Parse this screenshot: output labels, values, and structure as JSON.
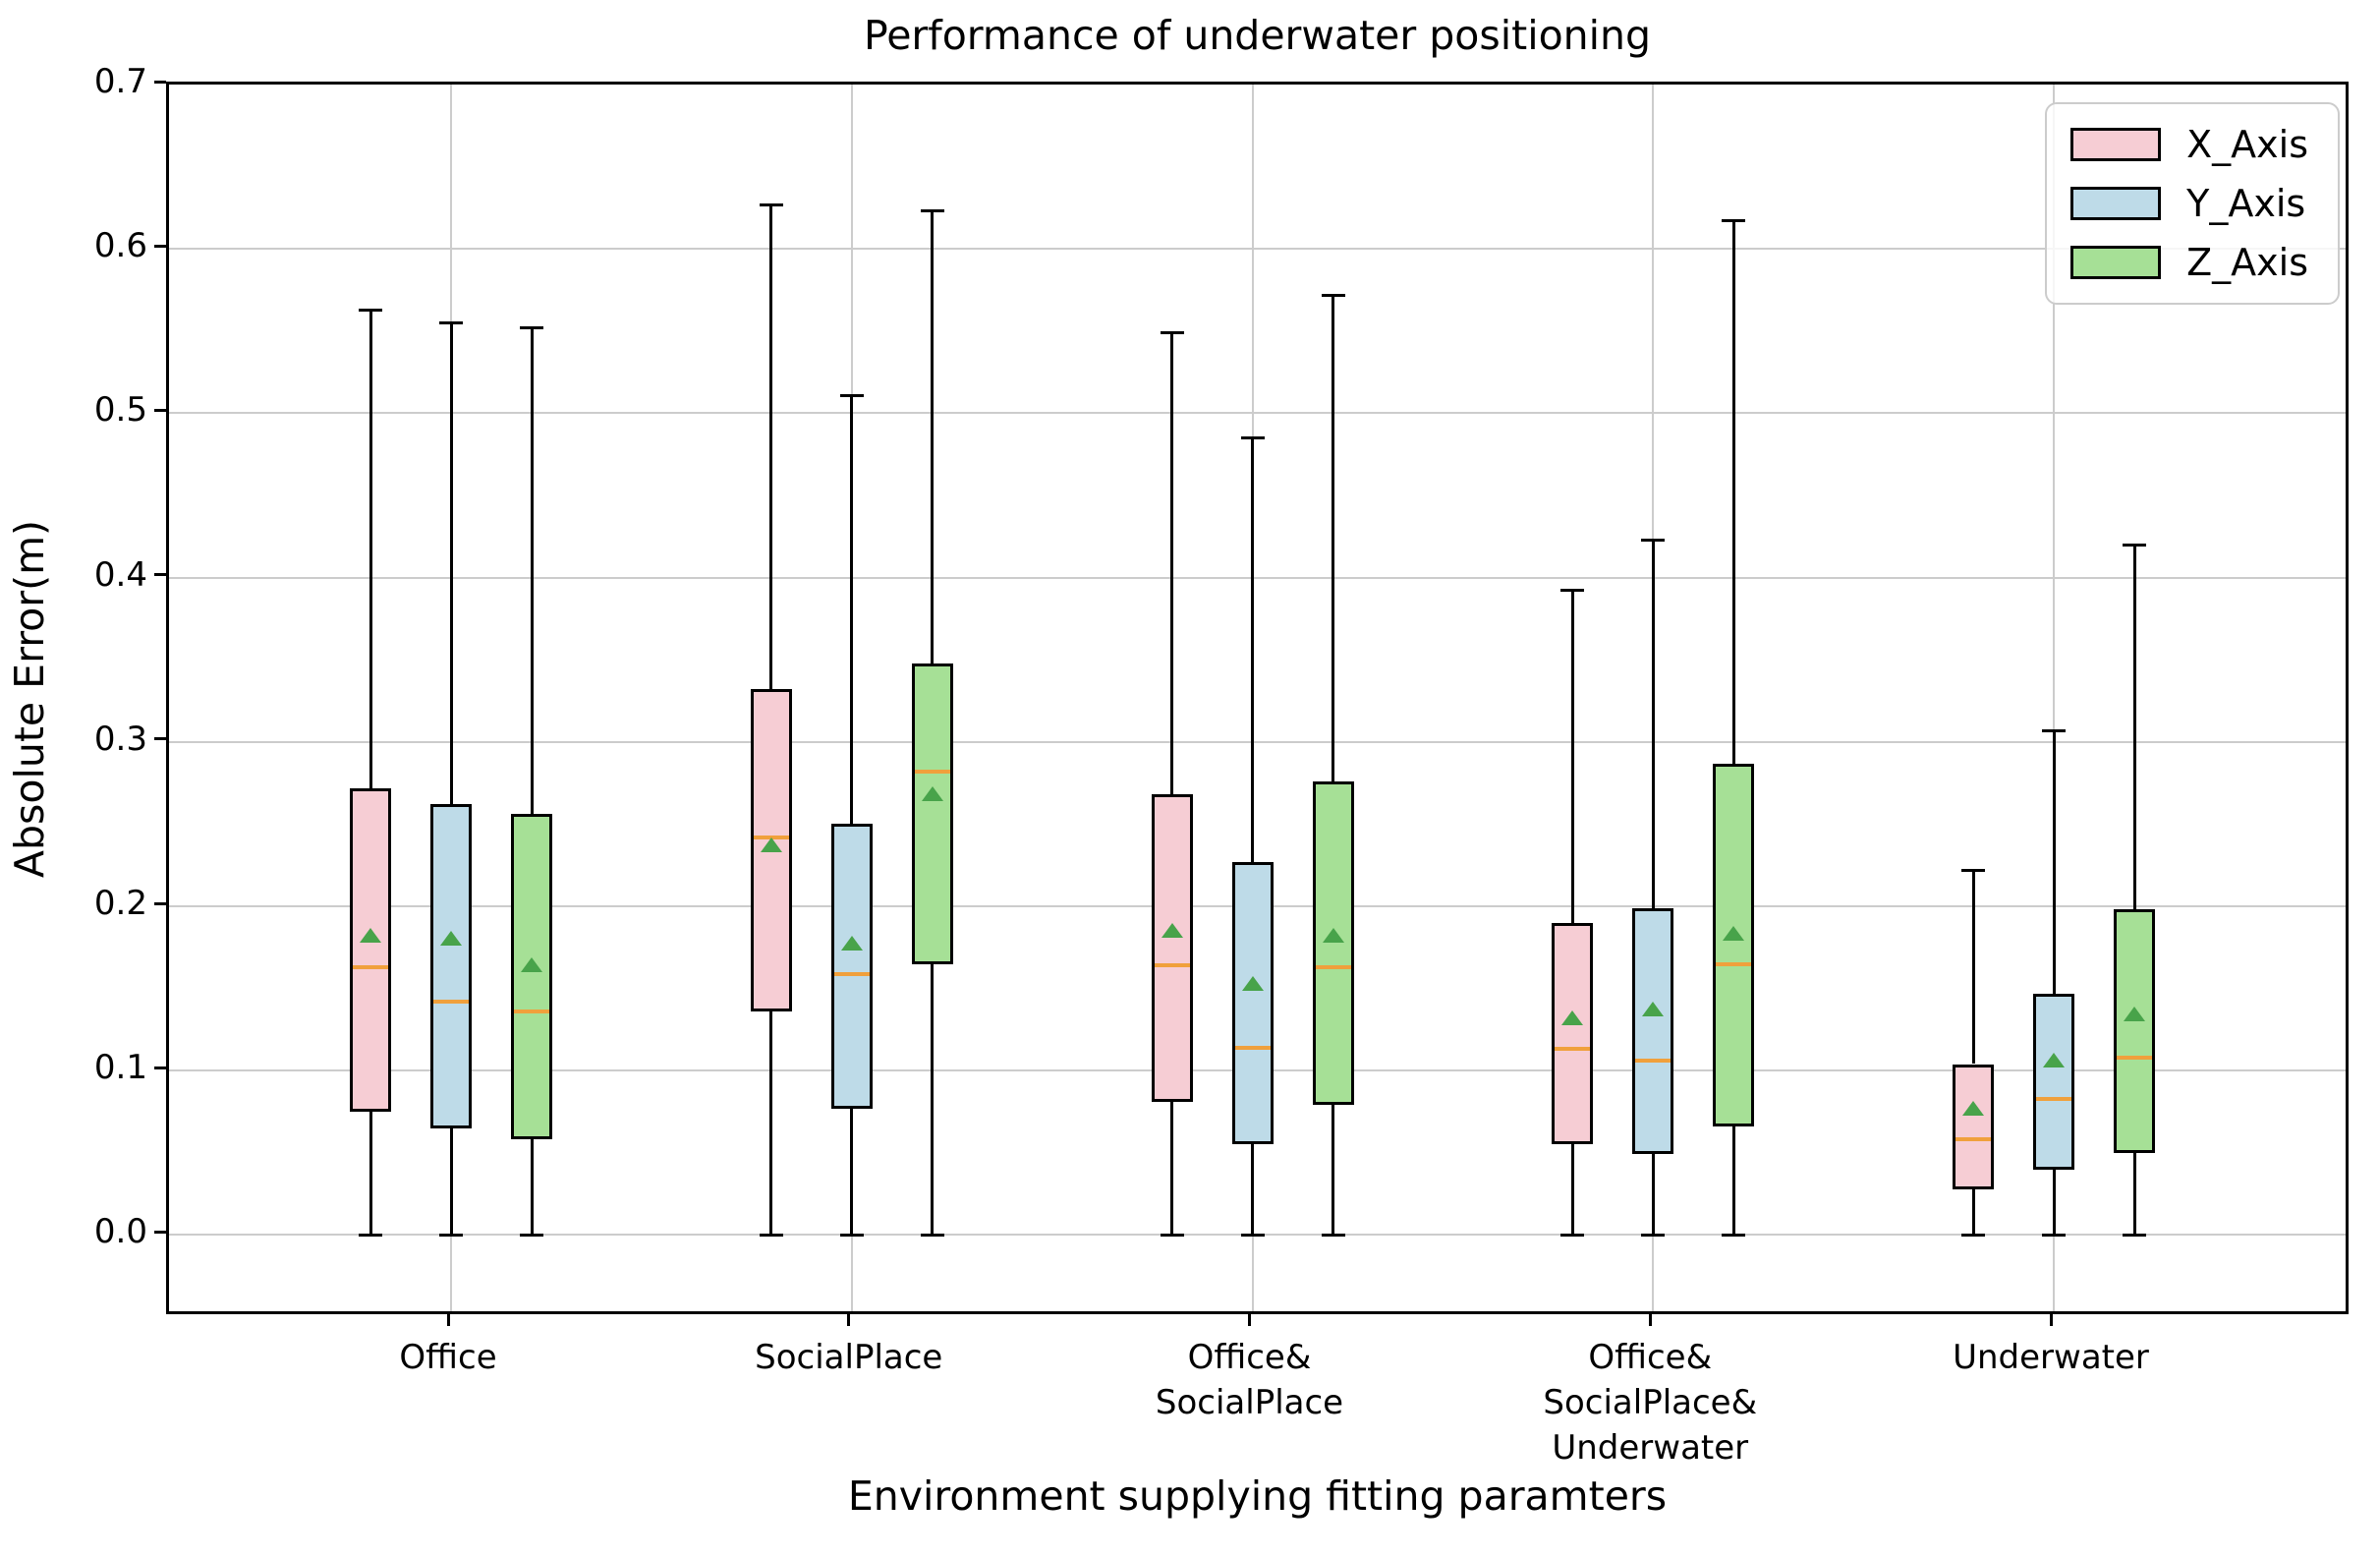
{
  "chart_data": {
    "type": "boxplot",
    "title": "Performance of underwater positioning",
    "xlabel": "Environment supplying fitting paramters",
    "ylabel": "Absolute Error(m)",
    "ylim": [
      -0.05,
      0.7
    ],
    "yticks": [
      0.0,
      0.1,
      0.2,
      0.3,
      0.4,
      0.5,
      0.6,
      0.7
    ],
    "ytick_labels": [
      "0.0",
      "0.1",
      "0.2",
      "0.3",
      "0.4",
      "0.5",
      "0.6",
      "0.7"
    ],
    "grid": true,
    "legend_position": "upper right",
    "categories": [
      "Office",
      "SocialPlace",
      "Office&SocialPlace",
      "Office&SocialPlace&Underwater",
      "Underwater"
    ],
    "category_label_lines": [
      [
        "Office"
      ],
      [
        "SocialPlace"
      ],
      [
        "Office&",
        "SocialPlace"
      ],
      [
        "Office&",
        "SocialPlace&",
        "Underwater"
      ],
      [
        "Underwater"
      ]
    ],
    "series": [
      {
        "name": "X_Axis",
        "fill_color": "#f6cdd4",
        "boxes": [
          {
            "whislo": 0.0,
            "q1": 0.075,
            "med": 0.163,
            "mean": 0.182,
            "q3": 0.272,
            "whishi": 0.563
          },
          {
            "whislo": 0.0,
            "q1": 0.136,
            "med": 0.242,
            "mean": 0.237,
            "q3": 0.332,
            "whishi": 0.627
          },
          {
            "whislo": 0.0,
            "q1": 0.081,
            "med": 0.164,
            "mean": 0.185,
            "q3": 0.268,
            "whishi": 0.549
          },
          {
            "whislo": 0.0,
            "q1": 0.055,
            "med": 0.113,
            "mean": 0.132,
            "q3": 0.19,
            "whishi": 0.392
          },
          {
            "whislo": 0.0,
            "q1": 0.028,
            "med": 0.058,
            "mean": 0.077,
            "q3": 0.104,
            "whishi": 0.222
          }
        ]
      },
      {
        "name": "Y_Axis",
        "fill_color": "#bedbe8",
        "boxes": [
          {
            "whislo": 0.0,
            "q1": 0.065,
            "med": 0.142,
            "mean": 0.18,
            "q3": 0.262,
            "whishi": 0.555
          },
          {
            "whislo": 0.0,
            "q1": 0.077,
            "med": 0.159,
            "mean": 0.177,
            "q3": 0.25,
            "whishi": 0.511
          },
          {
            "whislo": 0.0,
            "q1": 0.055,
            "med": 0.114,
            "mean": 0.153,
            "q3": 0.227,
            "whishi": 0.485
          },
          {
            "whislo": 0.0,
            "q1": 0.049,
            "med": 0.106,
            "mean": 0.137,
            "q3": 0.199,
            "whishi": 0.423
          },
          {
            "whislo": 0.0,
            "q1": 0.04,
            "med": 0.083,
            "mean": 0.106,
            "q3": 0.147,
            "whishi": 0.307
          }
        ]
      },
      {
        "name": "Z_Axis",
        "fill_color": "#a6e096",
        "boxes": [
          {
            "whislo": 0.0,
            "q1": 0.058,
            "med": 0.136,
            "mean": 0.164,
            "q3": 0.256,
            "whishi": 0.552
          },
          {
            "whislo": 0.0,
            "q1": 0.165,
            "med": 0.282,
            "mean": 0.268,
            "q3": 0.348,
            "whishi": 0.623
          },
          {
            "whislo": 0.0,
            "q1": 0.079,
            "med": 0.163,
            "mean": 0.182,
            "q3": 0.276,
            "whishi": 0.572
          },
          {
            "whislo": 0.0,
            "q1": 0.066,
            "med": 0.165,
            "mean": 0.183,
            "q3": 0.287,
            "whishi": 0.617
          },
          {
            "whislo": 0.0,
            "q1": 0.05,
            "med": 0.108,
            "mean": 0.134,
            "q3": 0.198,
            "whishi": 0.42
          }
        ]
      }
    ],
    "style": {
      "median_color": "#f0a03c",
      "mean_marker": "triangle-up",
      "mean_color": "#48a34a",
      "box_edge_color": "#000000",
      "whisker_color": "#000000",
      "grid_color": "#cccccc"
    }
  }
}
